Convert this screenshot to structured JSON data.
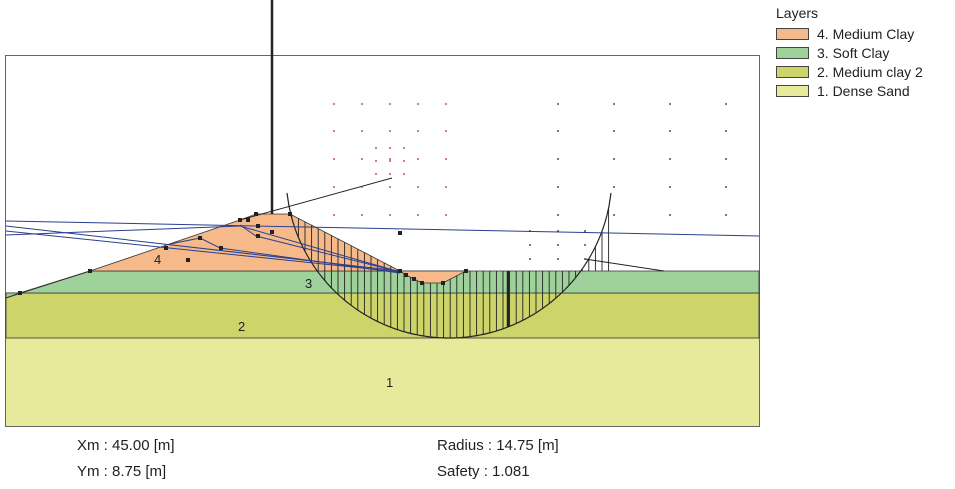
{
  "legend": {
    "title": "Layers",
    "items": [
      {
        "label": "4. Medium Clay",
        "color": "#f6b98a"
      },
      {
        "label": "3. Soft Clay",
        "color": "#9fd29a"
      },
      {
        "label": "2. Medium clay 2",
        "color": "#cdd56a"
      },
      {
        "label": "1. Dense Sand",
        "color": "#e7ea9a"
      }
    ]
  },
  "layer_labels": {
    "l4": "4",
    "l3": "3",
    "l2": "2",
    "l1": "1"
  },
  "results": {
    "xm": "Xm : 45.00 [m]",
    "ym": "Ym : 8.75 [m]",
    "radius": "Radius : 14.75 [m]",
    "safety": "Safety : 1.081"
  }
}
